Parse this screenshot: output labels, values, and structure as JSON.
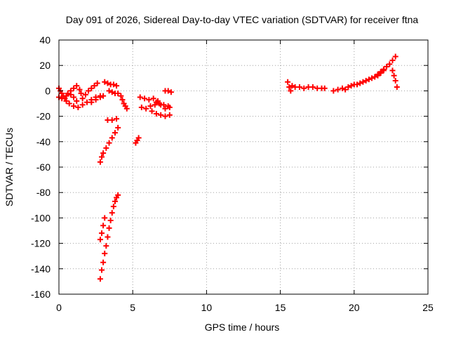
{
  "chart_data": {
    "type": "scatter",
    "title": "Day 091 of 2026, Sidereal Day-to-day VTEC variation (SDTVAR) for receiver ftna",
    "xlabel": "GPS time / hours",
    "ylabel": "SDTVAR / TECUs",
    "xlim": [
      0,
      25
    ],
    "ylim": [
      -160,
      40
    ],
    "xticks": [
      0,
      5,
      10,
      15,
      20,
      25
    ],
    "yticks": [
      -160,
      -140,
      -120,
      -100,
      -80,
      -60,
      -40,
      -20,
      0,
      20,
      40
    ],
    "grid": true,
    "marker": "plus",
    "color": "#ff0000",
    "series": [
      {
        "points": [
          [
            0.0,
            2
          ],
          [
            0.1,
            0
          ],
          [
            0.2,
            -2
          ],
          [
            0.3,
            -4
          ],
          [
            0.4,
            -6
          ],
          [
            0.5,
            -8
          ],
          [
            0.0,
            -5
          ],
          [
            0.2,
            -6
          ],
          [
            0.5,
            -4
          ],
          [
            0.8,
            -3
          ],
          [
            1.0,
            -5
          ],
          [
            1.2,
            -8
          ],
          [
            0.6,
            -2
          ],
          [
            0.8,
            0
          ],
          [
            1.0,
            2
          ],
          [
            1.2,
            4
          ],
          [
            1.4,
            1
          ],
          [
            1.5,
            -2
          ],
          [
            0.7,
            -10
          ],
          [
            1.0,
            -12
          ],
          [
            1.3,
            -13
          ],
          [
            1.6,
            -11
          ],
          [
            1.9,
            -9
          ],
          [
            2.2,
            -7
          ],
          [
            2.5,
            -5
          ],
          [
            2.8,
            -4
          ],
          [
            1.6,
            -6
          ],
          [
            1.8,
            -3
          ],
          [
            2.0,
            0
          ],
          [
            2.2,
            2
          ],
          [
            2.4,
            4
          ],
          [
            2.6,
            6
          ],
          [
            2.2,
            -9
          ],
          [
            2.5,
            -7
          ],
          [
            2.8,
            -5
          ],
          [
            3.0,
            -4
          ],
          [
            3.1,
            7
          ],
          [
            3.3,
            6
          ],
          [
            3.5,
            5
          ],
          [
            3.7,
            5
          ],
          [
            3.9,
            4
          ],
          [
            3.4,
            0
          ],
          [
            3.6,
            -1
          ],
          [
            3.8,
            -2
          ],
          [
            4.0,
            -2
          ],
          [
            4.2,
            -4
          ],
          [
            4.3,
            -7
          ],
          [
            4.4,
            -10
          ],
          [
            4.5,
            -12
          ],
          [
            4.6,
            -14
          ],
          [
            2.8,
            -56
          ],
          [
            2.9,
            -52
          ],
          [
            3.0,
            -49
          ],
          [
            3.2,
            -45
          ],
          [
            3.4,
            -41
          ],
          [
            3.6,
            -37
          ],
          [
            3.8,
            -33
          ],
          [
            4.0,
            -29
          ],
          [
            3.3,
            -23
          ],
          [
            3.6,
            -23
          ],
          [
            3.9,
            -22
          ],
          [
            2.8,
            -148
          ],
          [
            2.9,
            -141
          ],
          [
            3.0,
            -135
          ],
          [
            3.1,
            -128
          ],
          [
            3.2,
            -122
          ],
          [
            3.3,
            -115
          ],
          [
            3.4,
            -108
          ],
          [
            3.5,
            -102
          ],
          [
            3.6,
            -96
          ],
          [
            3.7,
            -91
          ],
          [
            3.8,
            -87
          ],
          [
            3.9,
            -84
          ],
          [
            4.0,
            -82
          ],
          [
            2.8,
            -117
          ],
          [
            2.9,
            -112
          ],
          [
            3.0,
            -106
          ],
          [
            3.1,
            -100
          ],
          [
            5.2,
            -41
          ],
          [
            5.3,
            -39
          ],
          [
            5.4,
            -37
          ],
          [
            5.5,
            -5
          ],
          [
            5.8,
            -6
          ],
          [
            6.1,
            -7
          ],
          [
            6.4,
            -6
          ],
          [
            6.7,
            -8
          ],
          [
            5.6,
            -13
          ],
          [
            5.9,
            -14
          ],
          [
            6.2,
            -12
          ],
          [
            6.5,
            -11
          ],
          [
            6.8,
            -10
          ],
          [
            7.1,
            -11
          ],
          [
            7.4,
            -12
          ],
          [
            6.3,
            -16
          ],
          [
            6.6,
            -18
          ],
          [
            6.9,
            -19
          ],
          [
            7.2,
            -20
          ],
          [
            7.5,
            -19
          ],
          [
            6.6,
            -9
          ],
          [
            6.9,
            -11
          ],
          [
            7.2,
            -14
          ],
          [
            7.5,
            -13
          ],
          [
            7.2,
            0
          ],
          [
            7.4,
            0
          ],
          [
            7.6,
            -1
          ],
          [
            15.5,
            7
          ],
          [
            15.6,
            3
          ],
          [
            15.7,
            0
          ],
          [
            15.8,
            4
          ],
          [
            16.0,
            3
          ],
          [
            16.3,
            3
          ],
          [
            16.6,
            2
          ],
          [
            16.9,
            3
          ],
          [
            17.2,
            3
          ],
          [
            17.5,
            2
          ],
          [
            17.8,
            2
          ],
          [
            18.0,
            2
          ],
          [
            18.6,
            0
          ],
          [
            18.9,
            1
          ],
          [
            19.2,
            2
          ],
          [
            19.4,
            1
          ],
          [
            19.6,
            3
          ],
          [
            19.8,
            4
          ],
          [
            20.0,
            5
          ],
          [
            20.2,
            5
          ],
          [
            20.4,
            6
          ],
          [
            20.6,
            7
          ],
          [
            20.8,
            8
          ],
          [
            21.0,
            9
          ],
          [
            21.2,
            10
          ],
          [
            21.4,
            11
          ],
          [
            21.6,
            12
          ],
          [
            21.8,
            14
          ],
          [
            22.0,
            16
          ],
          [
            21.6,
            13
          ],
          [
            21.8,
            15
          ],
          [
            22.0,
            17
          ],
          [
            22.2,
            19
          ],
          [
            22.4,
            21
          ],
          [
            22.6,
            24
          ],
          [
            22.8,
            27
          ],
          [
            22.6,
            16
          ],
          [
            22.7,
            12
          ],
          [
            22.8,
            8
          ],
          [
            22.9,
            3
          ]
        ]
      }
    ]
  }
}
